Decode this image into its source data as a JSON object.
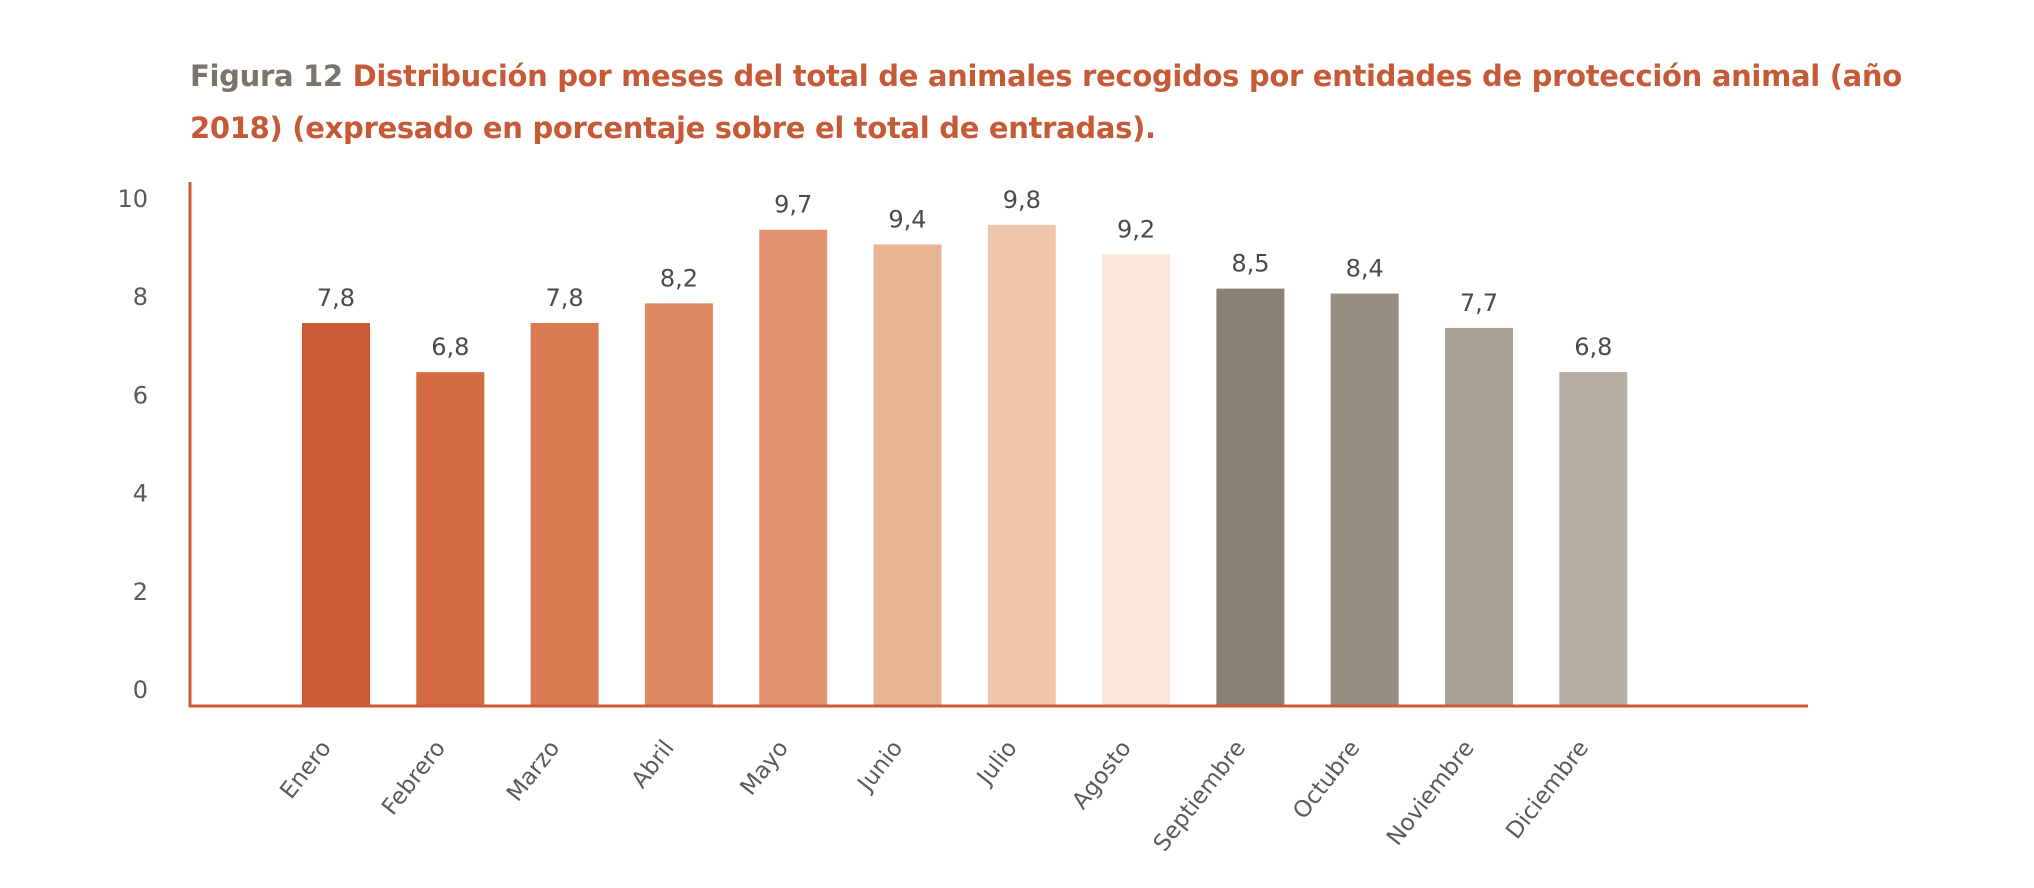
{
  "title": {
    "prefix": "Figura 12",
    "text": "Distribución por meses del total de animales recogidos por entidades de protección animal (año 2018) (expresado en porcentaje sobre el total de entradas)."
  },
  "chart_data": {
    "type": "bar",
    "categories": [
      "Enero",
      "Febrero",
      "Marzo",
      "Abril",
      "Mayo",
      "Junio",
      "Julio",
      "Agosto",
      "Septiembre",
      "Octubre",
      "Noviembre",
      "Diciembre"
    ],
    "values": [
      7.8,
      6.8,
      7.8,
      8.2,
      9.7,
      9.4,
      9.8,
      9.2,
      8.5,
      8.4,
      7.7,
      6.8
    ],
    "value_labels": [
      "7,8",
      "6,8",
      "7,8",
      "8,2",
      "9,7",
      "9,4",
      "9,8",
      "9,2",
      "8,5",
      "8,4",
      "7,7",
      "6,8"
    ],
    "bar_colors": [
      "#cc5a36",
      "#d46a44",
      "#d97a53",
      "#dc8860",
      "#e09470",
      "#e8b393",
      "#efc6ab",
      "#f8e6d9",
      "#8a8074",
      "#978d80",
      "#a9a194",
      "#b5afa3"
    ],
    "yticks": [
      0,
      2,
      4,
      6,
      8,
      10
    ],
    "ylim": [
      0,
      10
    ],
    "xlabel": "",
    "ylabel": "",
    "grid": false,
    "axis_color": "#cc5a36"
  }
}
